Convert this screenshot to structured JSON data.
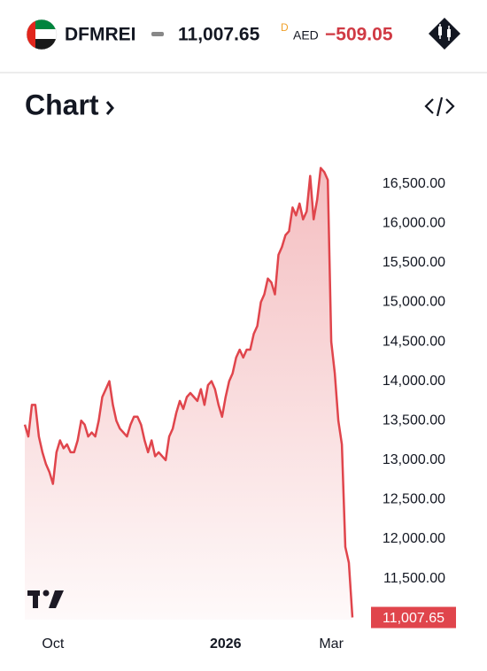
{
  "header": {
    "symbol": "DFMREI",
    "price": "11,007.65",
    "price_flag": "D",
    "currency": "AED",
    "change": "−509.05"
  },
  "section_title": "Chart",
  "chart_data": {
    "type": "area",
    "categories": [
      null,
      null,
      null,
      null,
      null,
      null,
      null,
      null,
      "Oct",
      null,
      null,
      null,
      null,
      null,
      null,
      null,
      null,
      null,
      null,
      null,
      null,
      null,
      null,
      null,
      null,
      null,
      null,
      null,
      null,
      null,
      null,
      null,
      null,
      null,
      null,
      null,
      null,
      null,
      null,
      null,
      null,
      null,
      null,
      null,
      null,
      null,
      null,
      null,
      null,
      null,
      null,
      null,
      null,
      null,
      null,
      null,
      null,
      "2026",
      null,
      null,
      null,
      null,
      null,
      null,
      null,
      null,
      null,
      null,
      null,
      null,
      null,
      null,
      null,
      null,
      null,
      null,
      null,
      null,
      null,
      null,
      null,
      null,
      null,
      null,
      null,
      null,
      null,
      "Mar",
      null,
      null,
      null,
      null,
      null,
      null
    ],
    "values": [
      13450,
      13300,
      13700,
      13700,
      13300,
      13100,
      12950,
      12850,
      12700,
      13100,
      13250,
      13150,
      13200,
      13100,
      13100,
      13250,
      13500,
      13450,
      13300,
      13350,
      13300,
      13500,
      13800,
      13900,
      14000,
      13700,
      13500,
      13400,
      13350,
      13300,
      13450,
      13550,
      13550,
      13450,
      13250,
      13100,
      13250,
      13050,
      13100,
      13050,
      13000,
      13300,
      13400,
      13600,
      13750,
      13650,
      13800,
      13850,
      13800,
      13750,
      13900,
      13700,
      13950,
      14000,
      13900,
      13700,
      13550,
      13800,
      14000,
      14100,
      14300,
      14400,
      14300,
      14400,
      14400,
      14600,
      14700,
      15000,
      15100,
      15300,
      15250,
      15100,
      15600,
      15700,
      15850,
      15900,
      16200,
      16100,
      16250,
      16050,
      16150,
      16600,
      16050,
      16300,
      16700,
      16650,
      16550,
      14500,
      14100,
      13500,
      13200,
      11900,
      11700,
      11007.65
    ],
    "color": "#e0454c",
    "last_price": {
      "value": 11007.65,
      "label": "11,007.65"
    },
    "ylim": [
      10980,
      16810
    ],
    "yticks": [
      {
        "value": 11500,
        "label": "11,500.00"
      },
      {
        "value": 12000,
        "label": "12,000.00"
      },
      {
        "value": 12500,
        "label": "12,500.00"
      },
      {
        "value": 13000,
        "label": "13,000.00"
      },
      {
        "value": 13500,
        "label": "13,500.00"
      },
      {
        "value": 14000,
        "label": "14,000.00"
      },
      {
        "value": 14500,
        "label": "14,500.00"
      },
      {
        "value": 15000,
        "label": "15,000.00"
      },
      {
        "value": 15500,
        "label": "15,500.00"
      },
      {
        "value": 16000,
        "label": "16,000.00"
      },
      {
        "value": 16500,
        "label": "16,500.00"
      }
    ],
    "grid": false
  }
}
